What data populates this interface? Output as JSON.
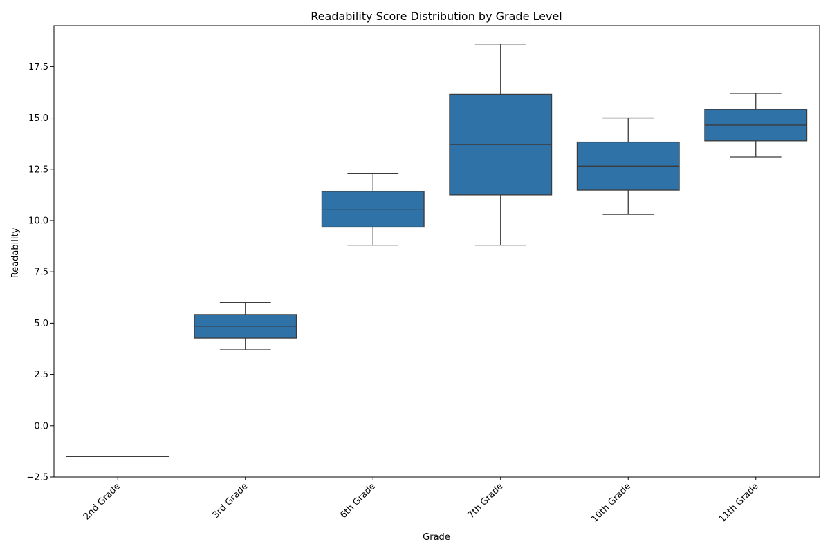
{
  "chart_data": {
    "type": "box",
    "title": "Readability Score Distribution by Grade Level",
    "xlabel": "Grade",
    "ylabel": "Readability",
    "categories": [
      "2nd Grade",
      "3rd Grade",
      "6th Grade",
      "7th Grade",
      "10th Grade",
      "11th Grade"
    ],
    "boxes": [
      {
        "category": "2nd Grade",
        "whisker_low": -1.5,
        "q1": -1.5,
        "median": -1.5,
        "q3": -1.5,
        "whisker_high": -1.5
      },
      {
        "category": "3rd Grade",
        "whisker_low": 3.7,
        "q1": 4.27,
        "median": 4.85,
        "q3": 5.42,
        "whisker_high": 6.0
      },
      {
        "category": "6th Grade",
        "whisker_low": 8.8,
        "q1": 9.68,
        "median": 10.55,
        "q3": 11.42,
        "whisker_high": 12.3
      },
      {
        "category": "7th Grade",
        "whisker_low": 8.8,
        "q1": 11.25,
        "median": 13.7,
        "q3": 16.15,
        "whisker_high": 18.6
      },
      {
        "category": "10th Grade",
        "whisker_low": 10.3,
        "q1": 11.48,
        "median": 12.65,
        "q3": 13.82,
        "whisker_high": 15.0
      },
      {
        "category": "11th Grade",
        "whisker_low": 13.1,
        "q1": 13.88,
        "median": 14.65,
        "q3": 15.42,
        "whisker_high": 16.2
      }
    ],
    "ylim": [
      -2.5,
      19.5
    ],
    "yticks": [
      -2.5,
      0.0,
      2.5,
      5.0,
      7.5,
      10.0,
      12.5,
      15.0,
      17.5
    ],
    "ytick_labels": [
      "−2.5",
      "0.0",
      "2.5",
      "5.0",
      "7.5",
      "10.0",
      "12.5",
      "15.0",
      "17.5"
    ],
    "box_color": "#2e72a8",
    "line_color": "#3b3b3b",
    "grid": false,
    "legend": "none"
  }
}
